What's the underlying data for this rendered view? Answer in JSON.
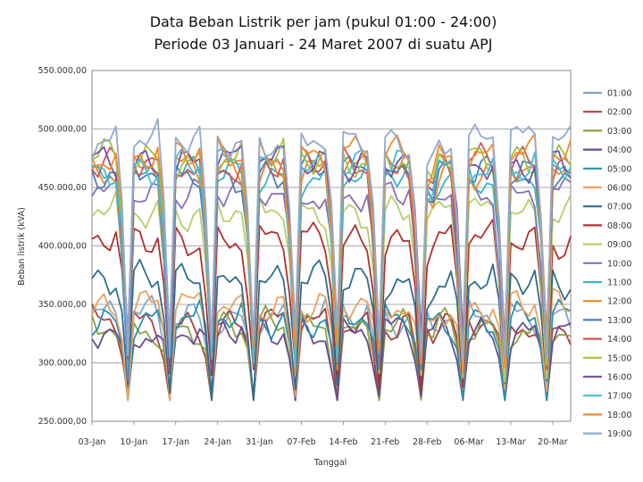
{
  "chart_data": {
    "type": "line",
    "title_lines": [
      "Data Beban Listrik per jam (pukul 01:00 - 24:00)",
      "Periode 03 Januari - 24 Maret 2007 di suatu APJ"
    ],
    "xlabel": "Tanggal",
    "ylabel": "Beban listrik (kVA)",
    "ylim": [
      250000,
      550000
    ],
    "y_ticks": [
      "250.000,00",
      "300.000,00",
      "350.000,00",
      "400.000,00",
      "450.000,00",
      "500.000,00",
      "550.000,00"
    ],
    "x_ticks": [
      "03-Jan",
      "10-Jan",
      "17-Jan",
      "24-Jan",
      "31-Jan",
      "07-Feb",
      "14-Feb",
      "21-Feb",
      "28-Feb",
      "06-Mar",
      "13-Mar",
      "20-Mar"
    ],
    "days": 81,
    "weekly_dip_days": [
      6,
      13,
      20,
      27,
      34,
      41,
      48,
      55,
      62,
      69,
      76
    ],
    "grid": true,
    "legend_position": "right",
    "series": [
      {
        "name": "01:00",
        "color": "#7FA6CF",
        "base": 340000
      },
      {
        "name": "02:00",
        "color": "#A9423E",
        "base": 333000
      },
      {
        "name": "03:00",
        "color": "#88A33E",
        "base": 330000
      },
      {
        "name": "04:00",
        "color": "#6A4C93",
        "base": 327000
      },
      {
        "name": "05:00",
        "color": "#2B8FAE",
        "base": 338000
      },
      {
        "name": "06:00",
        "color": "#E9A160",
        "base": 348000
      },
      {
        "name": "07:00",
        "color": "#2E6E8F",
        "base": 370000
      },
      {
        "name": "08:00",
        "color": "#B03030",
        "base": 405000
      },
      {
        "name": "09:00",
        "color": "#B4CF6A",
        "base": 430000
      },
      {
        "name": "10:00",
        "color": "#8A6FB5",
        "base": 445000
      },
      {
        "name": "11:00",
        "color": "#39B3C9",
        "base": 460000
      },
      {
        "name": "12:00",
        "color": "#F08A24",
        "base": 465000
      },
      {
        "name": "13:00",
        "color": "#4E7FB8",
        "base": 462000
      },
      {
        "name": "14:00",
        "color": "#CC5858",
        "base": 470000
      },
      {
        "name": "15:00",
        "color": "#A3C43B",
        "base": 475000
      },
      {
        "name": "16:00",
        "color": "#7852A9",
        "base": 472000
      },
      {
        "name": "17:00",
        "color": "#43C0D6",
        "base": 468000
      },
      {
        "name": "18:00",
        "color": "#F28C28",
        "base": 478000
      },
      {
        "name": "19:00",
        "color": "#92A8D1",
        "base": 490000
      }
    ]
  }
}
